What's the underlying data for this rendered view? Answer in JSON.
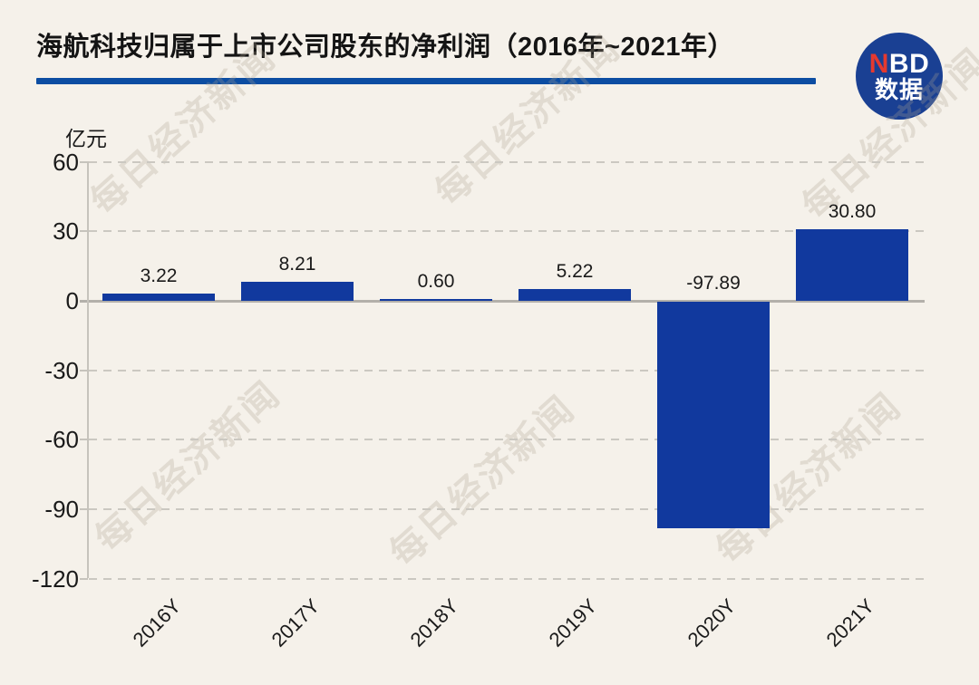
{
  "title": "海航科技归属于上市公司股东的净利润（2016年~2021年）",
  "unit_label": "亿元",
  "watermark_text": "每日经济新闻",
  "logo": {
    "line1_red": "N",
    "line1_rest": "BD",
    "line2": "数据"
  },
  "colors": {
    "background": "#F5F1EA",
    "bar": "#11399E",
    "title_underline": "#0C4DA2",
    "logo_circle": "#1A4093",
    "logo_n": "#E5392F",
    "axis_line": "#C6C3BC",
    "zero_line": "#B3B0AA",
    "text": "#1A1A1A"
  },
  "chart_data": {
    "type": "bar",
    "title": "海航科技归属于上市公司股东的净利润（2016年~2021年）",
    "ylabel": "亿元",
    "categories": [
      "2016Y",
      "2017Y",
      "2018Y",
      "2019Y",
      "2020Y",
      "2021Y"
    ],
    "values": [
      3.22,
      8.21,
      0.6,
      5.22,
      -97.89,
      30.8
    ],
    "value_labels": [
      "3.22",
      "8.21",
      "0.60",
      "5.22",
      "-97.89",
      "30.80"
    ],
    "yticks": [
      60,
      30,
      0,
      -30,
      -60,
      -90,
      -120
    ],
    "ylim": [
      -120,
      60
    ],
    "grid": "horizontal dashed",
    "legend": "none"
  }
}
